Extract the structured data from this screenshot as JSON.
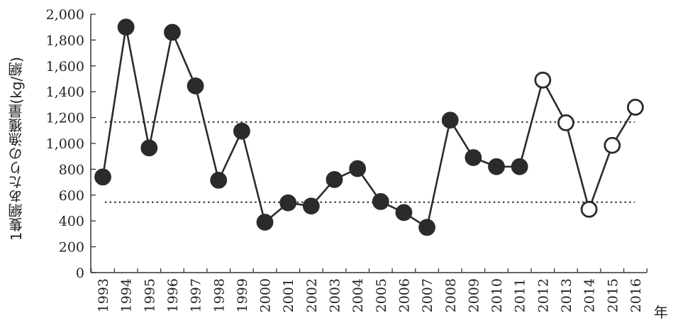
{
  "chart_data": {
    "type": "line",
    "title": "",
    "ylabel": "1隻網あたりの漁獲量(kg/網)",
    "xlabel": "年",
    "ylim": [
      0,
      2000
    ],
    "yticks": [
      0,
      200,
      400,
      600,
      800,
      1000,
      1200,
      1400,
      1600,
      1800,
      2000
    ],
    "ytick_labels": [
      "0",
      "200",
      "400",
      "600",
      "800",
      "1,000",
      "1,200",
      "1,400",
      "1,600",
      "1,800",
      "2,000"
    ],
    "categories": [
      "1993",
      "1994",
      "1995",
      "1996",
      "1997",
      "1998",
      "1999",
      "2000",
      "2001",
      "2002",
      "2003",
      "2004",
      "2005",
      "2006",
      "2007",
      "2008",
      "2009",
      "2010",
      "2011",
      "2012",
      "2013",
      "2014",
      "2015",
      "2016"
    ],
    "values": [
      740,
      1900,
      965,
      1860,
      1445,
      715,
      1095,
      390,
      540,
      515,
      720,
      805,
      550,
      465,
      350,
      1180,
      890,
      820,
      820,
      1490,
      1160,
      490,
      985,
      1280
    ],
    "filled": [
      true,
      true,
      true,
      true,
      true,
      true,
      true,
      true,
      true,
      true,
      true,
      true,
      true,
      true,
      true,
      true,
      true,
      true,
      true,
      false,
      false,
      false,
      false,
      false
    ],
    "reference_lines": [
      1165,
      545
    ],
    "grid": false,
    "colors": {
      "line": "#2b2b2b",
      "filled_marker": "#2b2b2b",
      "open_marker_fill": "#ffffff",
      "reference": "#444444"
    }
  }
}
